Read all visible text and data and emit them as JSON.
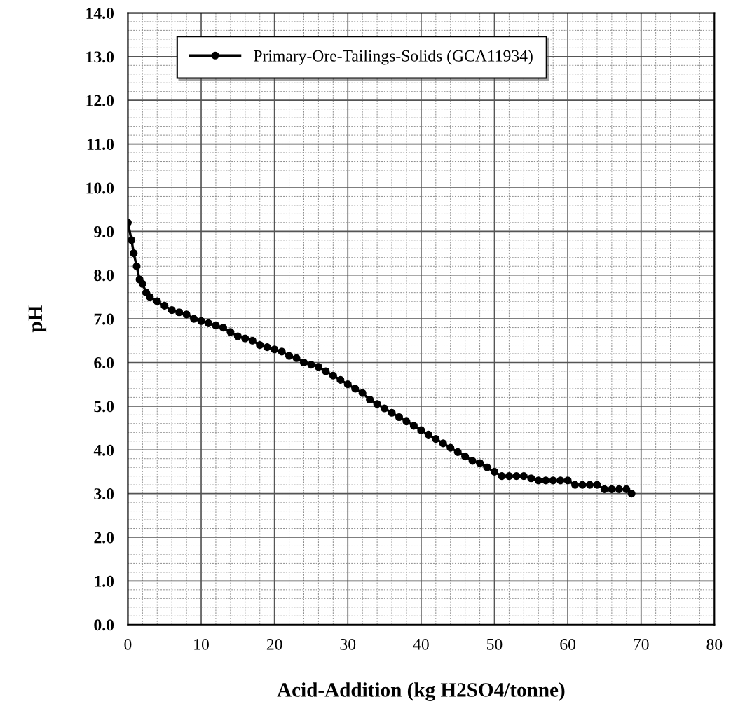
{
  "chart_data": {
    "type": "line",
    "xlabel": "Acid-Addition (kg H2SO4/tonne)",
    "ylabel": "pH",
    "series": [
      {
        "name": "Primary-Ore-Tailings-Solids (GCA11934)",
        "color": "#000000",
        "x": [
          0,
          0.5,
          0.8,
          1.2,
          1.6,
          2,
          2.5,
          3,
          4,
          5,
          6,
          7,
          8,
          9,
          10,
          11,
          12,
          13,
          14,
          15,
          16,
          17,
          18,
          19,
          20,
          21,
          22,
          23,
          24,
          25,
          26,
          27,
          28,
          29,
          30,
          31,
          32,
          33,
          34,
          35,
          36,
          37,
          38,
          39,
          40,
          41,
          42,
          43,
          44,
          45,
          46,
          47,
          48,
          49,
          50,
          51,
          52,
          53,
          54,
          55,
          56,
          57,
          58,
          59,
          60,
          61,
          62,
          63,
          64,
          65,
          66,
          67,
          68,
          68.7
        ],
        "values": [
          9.2,
          8.8,
          8.5,
          8.2,
          7.9,
          7.8,
          7.6,
          7.5,
          7.4,
          7.3,
          7.2,
          7.15,
          7.1,
          7.0,
          6.95,
          6.9,
          6.85,
          6.8,
          6.7,
          6.6,
          6.55,
          6.5,
          6.4,
          6.35,
          6.3,
          6.25,
          6.15,
          6.1,
          6.0,
          5.95,
          5.9,
          5.8,
          5.7,
          5.6,
          5.5,
          5.4,
          5.3,
          5.15,
          5.05,
          4.95,
          4.85,
          4.75,
          4.65,
          4.55,
          4.45,
          4.35,
          4.25,
          4.15,
          4.05,
          3.95,
          3.85,
          3.75,
          3.7,
          3.6,
          3.5,
          3.4,
          3.4,
          3.4,
          3.4,
          3.35,
          3.3,
          3.3,
          3.3,
          3.3,
          3.3,
          3.2,
          3.2,
          3.2,
          3.2,
          3.1,
          3.1,
          3.1,
          3.1,
          3.0
        ]
      }
    ],
    "xlim": [
      0,
      80
    ],
    "xticks": [
      0,
      10,
      20,
      30,
      40,
      50,
      60,
      70,
      80
    ],
    "ylim": [
      0,
      14
    ],
    "yticks": [
      {
        "value": 0,
        "label": "0.0"
      },
      {
        "value": 1,
        "label": "1.0"
      },
      {
        "value": 2,
        "label": "2.0"
      },
      {
        "value": 3,
        "label": "3.0"
      },
      {
        "value": 4,
        "label": "4.0"
      },
      {
        "value": 5,
        "label": "5.0"
      },
      {
        "value": 6,
        "label": "6.0"
      },
      {
        "value": 7,
        "label": "7.0"
      },
      {
        "value": 8,
        "label": "8.0"
      },
      {
        "value": 9,
        "label": "9.0"
      },
      {
        "value": 10,
        "label": "10.0"
      },
      {
        "value": 11,
        "label": "11.0"
      },
      {
        "value": 12,
        "label": "12.0"
      },
      {
        "value": 13,
        "label": "13.0"
      },
      {
        "value": 14,
        "label": "14.0"
      }
    ],
    "grid": true,
    "legend": "top left",
    "marker": "circle",
    "line_style": "solid"
  }
}
